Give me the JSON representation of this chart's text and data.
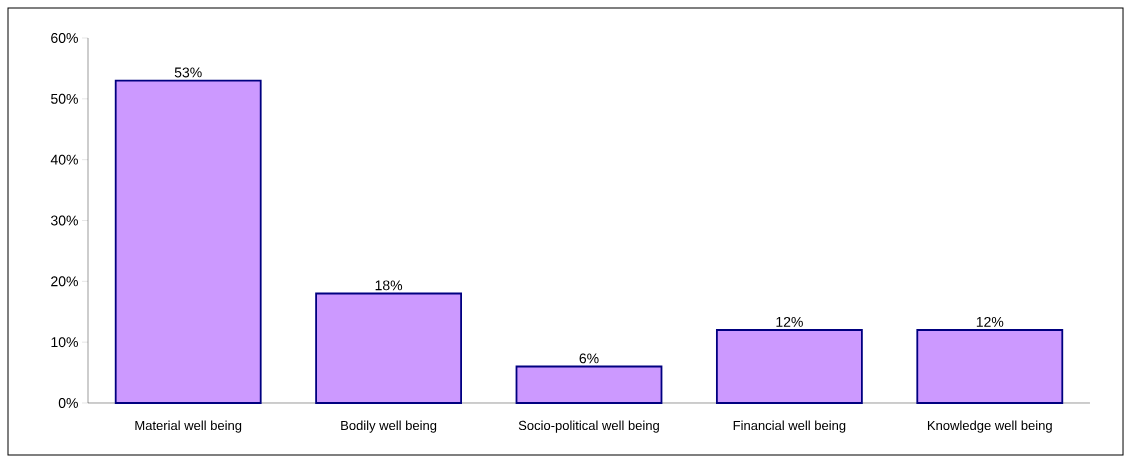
{
  "chart_data": {
    "type": "bar",
    "categories": [
      "Material well being",
      "Bodily well being",
      "Socio-political well being",
      "Financial well being",
      "Knowledge well being"
    ],
    "values": [
      53,
      18,
      6,
      12,
      12
    ],
    "value_labels": [
      "53%",
      "18%",
      "6%",
      "12%",
      "12%"
    ],
    "color": "#cc99ff",
    "ylim": [
      0,
      60
    ],
    "yticks": [
      {
        "value": 0,
        "label": "0%"
      },
      {
        "value": 10,
        "label": "10%"
      },
      {
        "value": 20,
        "label": "20%"
      },
      {
        "value": 30,
        "label": "30%"
      },
      {
        "value": 40,
        "label": "40%"
      },
      {
        "value": 50,
        "label": "50%"
      },
      {
        "value": 60,
        "label": "60%"
      }
    ]
  }
}
